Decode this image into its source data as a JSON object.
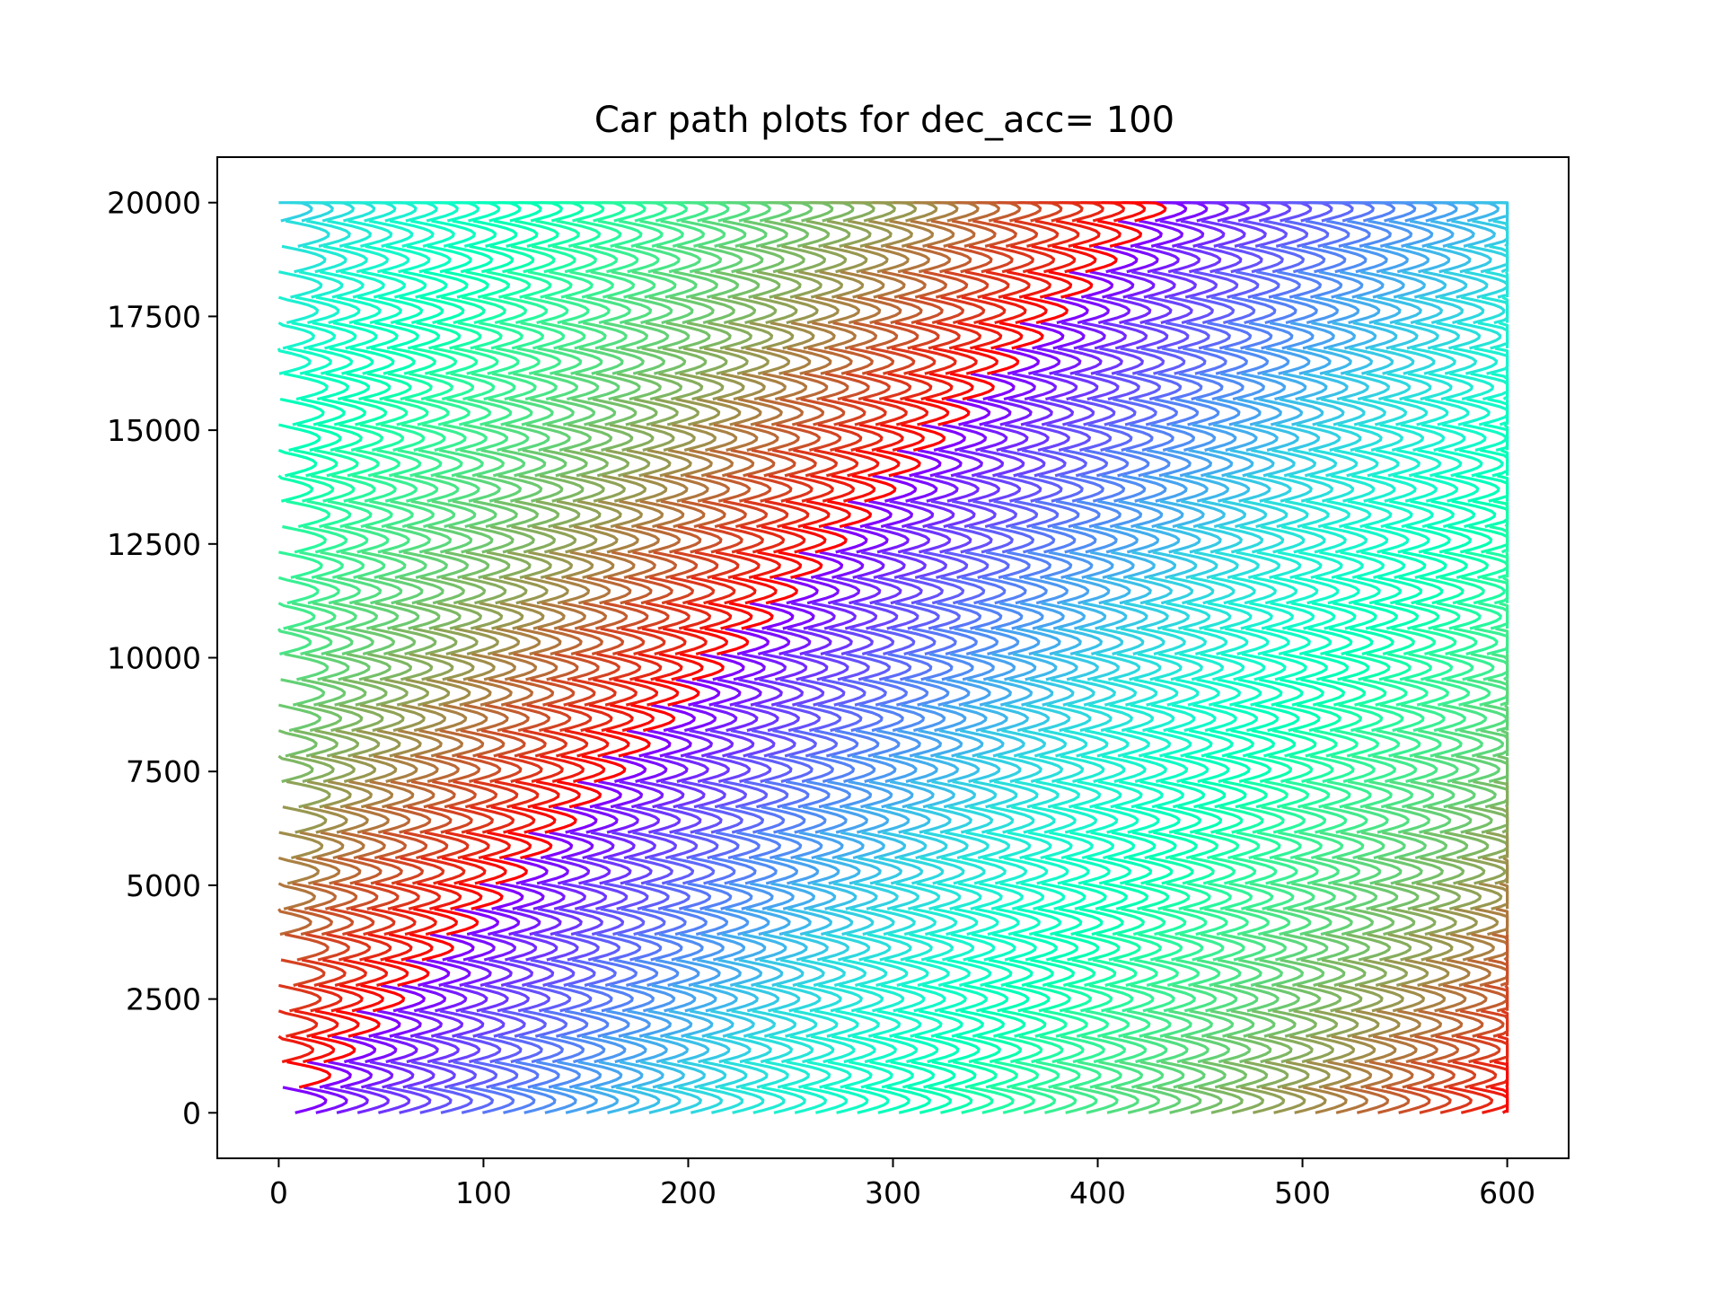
{
  "chart_data": {
    "type": "line",
    "title": "Car path plots for dec_acc= 100",
    "xlabel": "",
    "ylabel": "",
    "xlim": [
      -30,
      630
    ],
    "ylim": [
      -1000,
      21000
    ],
    "xticks": [
      0,
      100,
      200,
      300,
      400,
      500,
      600
    ],
    "xtick_labels": [
      "0",
      "100",
      "200",
      "300",
      "400",
      "500",
      "600"
    ],
    "yticks": [
      0,
      2500,
      5000,
      7500,
      10000,
      12500,
      15000,
      17500,
      20000
    ],
    "ytick_labels": [
      "0",
      "2500",
      "5000",
      "7500",
      "10000",
      "12500",
      "15000",
      "17500",
      "20000"
    ],
    "grid": false,
    "legend": "none",
    "colormap": "rainbow",
    "series_count": 60,
    "track_length": 600,
    "y_range": [
      0,
      20000
    ],
    "loop_height": 560,
    "loop_depth": 18,
    "drift_per_loop": 12,
    "colors": {
      "axes": "#000000",
      "background": "#ffffff"
    }
  }
}
